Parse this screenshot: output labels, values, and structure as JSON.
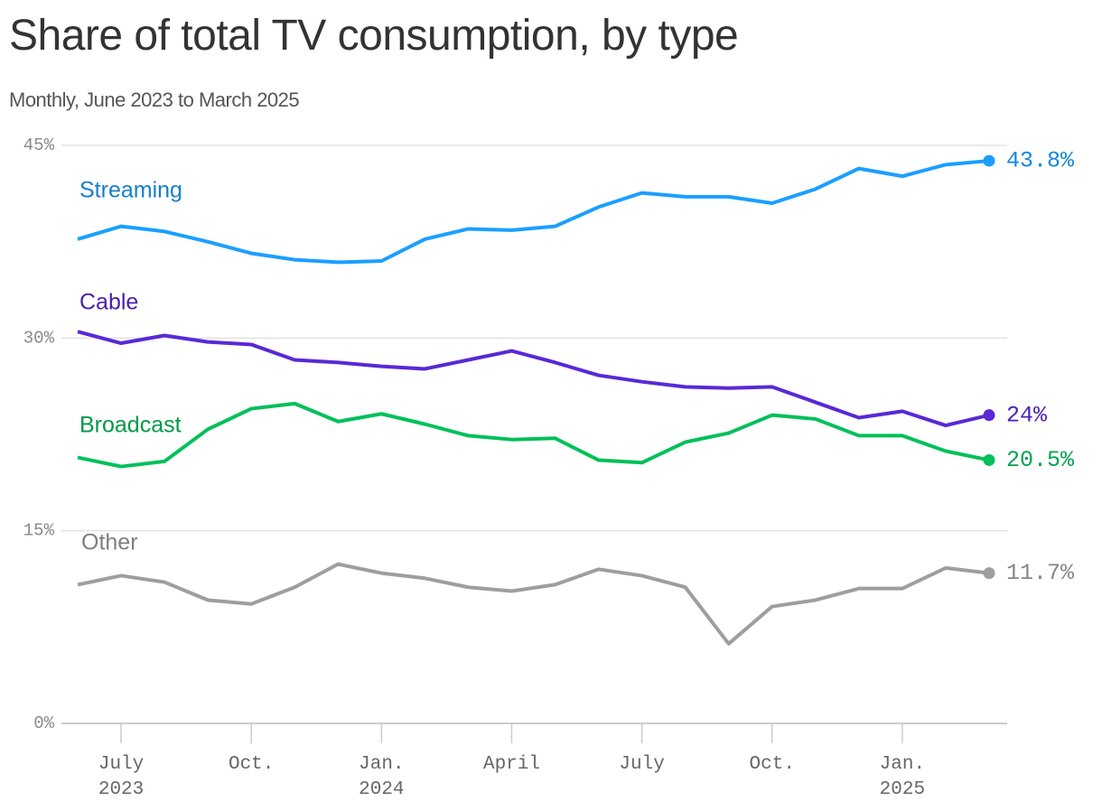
{
  "chart_data": {
    "type": "line",
    "title": "Share of total TV consumption, by type",
    "subtitle": "Monthly, June 2023 to March 2025",
    "categories": [
      null,
      "July 2023",
      null,
      null,
      "Oct.",
      null,
      null,
      "Jan. 2024",
      null,
      null,
      "April",
      null,
      null,
      "July",
      null,
      null,
      "Oct.",
      null,
      null,
      "Jan. 2025",
      null,
      null
    ],
    "ylim": [
      0,
      45
    ],
    "yticks": [
      {
        "value": 0,
        "label": "0%"
      },
      {
        "value": 15,
        "label": "15%"
      },
      {
        "value": 30,
        "label": "30%"
      },
      {
        "value": 45,
        "label": "45%"
      }
    ],
    "grid": true,
    "series": [
      {
        "name": "Streaming",
        "color": "#1a9fff",
        "values": [
          37.7,
          38.7,
          38.3,
          37.5,
          36.6,
          36.1,
          35.9,
          36.0,
          37.7,
          38.5,
          38.4,
          38.7,
          40.2,
          41.3,
          41.0,
          41.0,
          40.5,
          41.6,
          43.2,
          42.6,
          43.5,
          43.8
        ],
        "value_labels": [
          null,
          null,
          null,
          null,
          null,
          null,
          null,
          null,
          null,
          null,
          null,
          null,
          null,
          null,
          null,
          null,
          null,
          null,
          null,
          null,
          null,
          "43.8%"
        ]
      },
      {
        "name": "Cable",
        "color": "#5a28d6",
        "values": [
          30.5,
          29.6,
          30.2,
          29.7,
          29.5,
          28.3,
          28.1,
          27.8,
          27.6,
          28.3,
          29.0,
          28.1,
          27.1,
          26.6,
          26.2,
          26.1,
          26.2,
          25.0,
          23.8,
          24.3,
          23.2,
          24
        ],
        "value_labels": [
          null,
          null,
          null,
          null,
          null,
          null,
          null,
          null,
          null,
          null,
          null,
          null,
          null,
          null,
          null,
          null,
          null,
          null,
          null,
          null,
          null,
          "24%"
        ]
      },
      {
        "name": "Broadcast",
        "color": "#00c05a",
        "values": [
          20.7,
          20.0,
          20.4,
          22.9,
          24.5,
          24.9,
          23.5,
          24.1,
          23.3,
          22.4,
          22.1,
          22.2,
          20.5,
          20.3,
          21.9,
          22.6,
          24.0,
          23.7,
          22.4,
          22.4,
          21.2,
          20.5
        ],
        "value_labels": [
          null,
          null,
          null,
          null,
          null,
          null,
          null,
          null,
          null,
          null,
          null,
          null,
          null,
          null,
          null,
          null,
          null,
          null,
          null,
          null,
          null,
          "20.5%"
        ]
      },
      {
        "name": "Other",
        "color": "#9e9e9e",
        "values": [
          10.8,
          11.5,
          11.0,
          9.6,
          9.3,
          10.6,
          12.4,
          11.7,
          11.3,
          10.6,
          10.3,
          10.8,
          12.0,
          11.5,
          10.6,
          6.2,
          9.1,
          9.6,
          10.5,
          10.5,
          12.1,
          11.7
        ],
        "value_labels": [
          null,
          null,
          null,
          null,
          null,
          null,
          null,
          null,
          null,
          null,
          null,
          null,
          null,
          null,
          null,
          null,
          null,
          null,
          null,
          null,
          null,
          "11.7%"
        ]
      }
    ]
  }
}
